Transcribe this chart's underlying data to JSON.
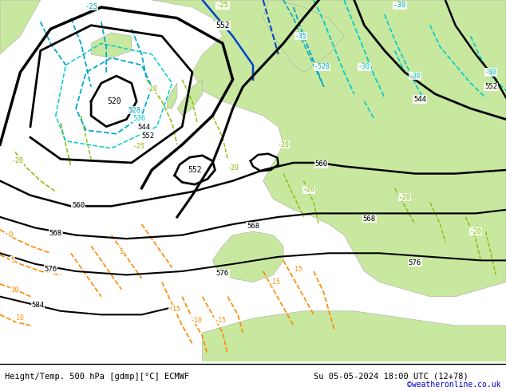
{
  "title_left": "Height/Temp. 500 hPa [gdmp][°C] ECMWF",
  "title_right": "Su 05-05-2024 18:00 UTC (12+78)",
  "credit": "©weatheronline.co.uk",
  "land_color": "#c8e8a0",
  "sea_color": "#c8c8c8",
  "fig_width": 6.34,
  "fig_height": 4.9,
  "dpi": 100
}
